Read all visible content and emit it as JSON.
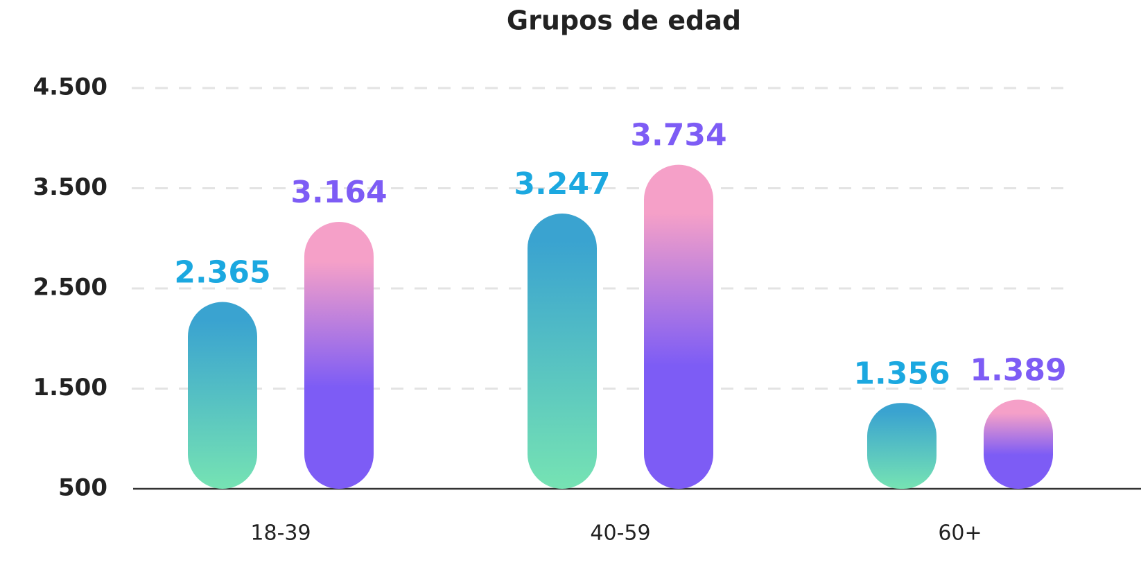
{
  "chart_data": {
    "type": "bar",
    "title": "Grupos de edad",
    "categories": [
      "18-39",
      "40-59",
      "60+"
    ],
    "series": [
      {
        "color": "#1ba8e0",
        "gradient": [
          "#3aa3d0",
          "#76e3b3"
        ],
        "values": [
          2365,
          3247,
          1356
        ],
        "value_labels": [
          "2.365",
          "3.247",
          "1.356"
        ]
      },
      {
        "color": "#7d5cf5",
        "gradient": [
          "#f5a0c8",
          "#7d5cf5"
        ],
        "values": [
          3164,
          3734,
          1389
        ],
        "value_labels": [
          "3.164",
          "3.734",
          "1.389"
        ]
      }
    ],
    "ylim": [
      500,
      4500
    ],
    "yticks": [
      {
        "value": 500,
        "label": "500"
      },
      {
        "value": 1500,
        "label": "1.500"
      },
      {
        "value": 2500,
        "label": "2.500"
      },
      {
        "value": 3500,
        "label": "3.500"
      },
      {
        "value": 4500,
        "label": "4.500"
      }
    ],
    "grid": true
  }
}
